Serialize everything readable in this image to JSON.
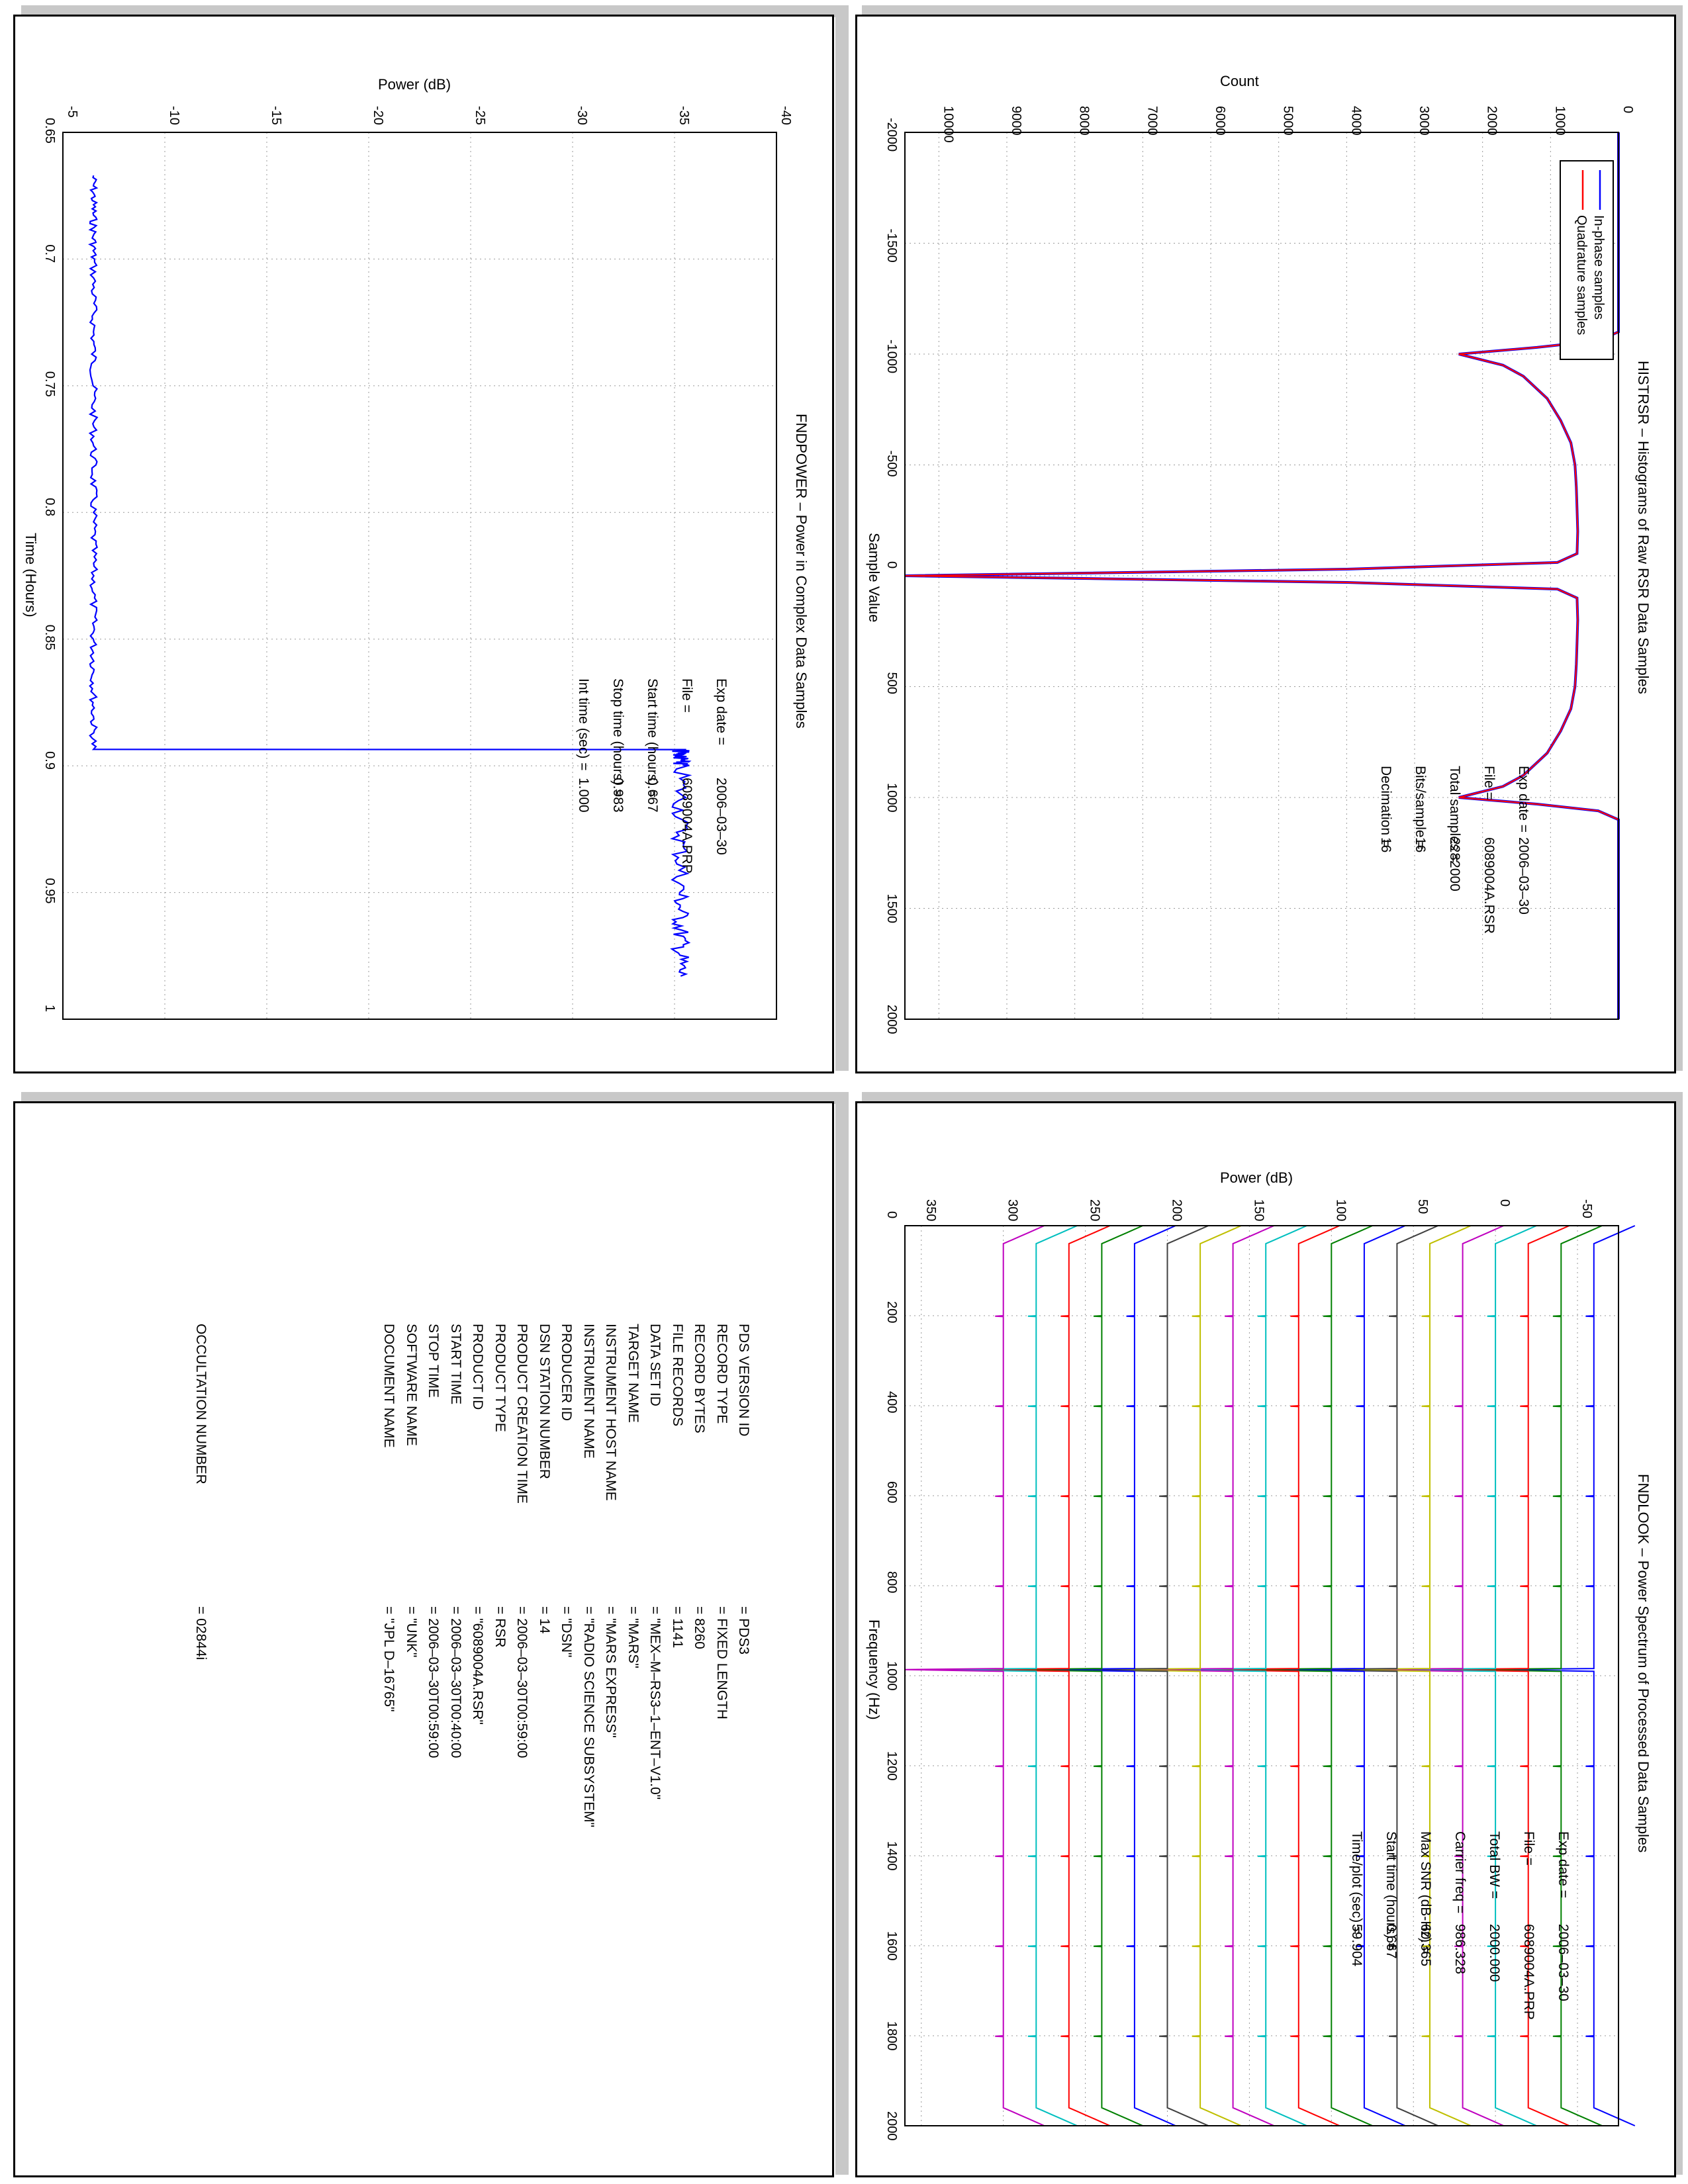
{
  "histrsr": {
    "title": "HISTRSR – Histograms of Raw RSR Data Samples",
    "xlabel": "Sample Value",
    "ylabel": "Count",
    "legend": [
      "In-phase samples",
      "Quadrature samples"
    ],
    "info": [
      {
        "k": "Exp date =",
        "v": "2006–03–30"
      },
      {
        "k": "File =",
        "v": "6089004A.RSR"
      },
      {
        "k": "Total samples =",
        "v": "2282000"
      },
      {
        "k": "Bits/sample =",
        "v": "16"
      },
      {
        "k": "Decimation =",
        "v": "16"
      }
    ]
  },
  "fndpower": {
    "title": "FNDPOWER – Power in Complex Data Samples",
    "xlabel": "Time (Hours)",
    "ylabel": "Power (dB)",
    "info": [
      {
        "k": "Exp date =",
        "v": "2006–03–30"
      },
      {
        "k": "File =",
        "v": "6089004A.PRP"
      },
      {
        "k": "Start time (hours) =",
        "v": "0.667"
      },
      {
        "k": "Stop time (hours) =",
        "v": "0.983"
      },
      {
        "k": "Int time (sec) =",
        "v": "1.000"
      }
    ]
  },
  "fndlook": {
    "title": "FNDLOOK – Power Spectrum of Processed Data Samples",
    "xlabel": "Frequency (Hz)",
    "ylabel": "Power (dB)",
    "info": [
      {
        "k": "Exp date =",
        "v": "2006–03–30"
      },
      {
        "k": "File =",
        "v": "6089004A.PRP"
      },
      {
        "k": "Total BW =",
        "v": "2000.000"
      },
      {
        "k": "Carrier freq =",
        "v": "986.328"
      },
      {
        "k": "Max SNR (dB-Hz) =",
        "v": "60.365"
      },
      {
        "k": "Start time (hours) =",
        "v": "0.667"
      },
      {
        "k": "Time/plot (sec) =",
        "v": "59.904"
      }
    ]
  },
  "labels": {
    "rows": [
      {
        "k": "PDS VERSION ID",
        "v": "= PDS3"
      },
      {
        "k": "RECORD TYPE",
        "v": "= FIXED LENGTH"
      },
      {
        "k": "RECORD BYTES",
        "v": "= 8260"
      },
      {
        "k": "FILE RECORDS",
        "v": "= 1141"
      },
      {
        "k": "DATA SET ID",
        "v": "= \"MEX–M–RS3–1–ENT–V1.0\""
      },
      {
        "k": "TARGET NAME",
        "v": "= \"MARS\""
      },
      {
        "k": "INSTRUMENT HOST NAME",
        "v": "= \"MARS EXPRESS\""
      },
      {
        "k": "INSTRUMENT NAME",
        "v": "= \"RADIO SCIENCE SUBSYSTEM\""
      },
      {
        "k": "PRODUCER ID",
        "v": "= \"DSN\""
      },
      {
        "k": "DSN STATION NUMBER",
        "v": "= 14"
      },
      {
        "k": "PRODUCT CREATION TIME",
        "v": "= 2006–03–30T00:59:00"
      },
      {
        "k": "PRODUCT TYPE",
        "v": "= RSR"
      },
      {
        "k": "PRODUCT ID",
        "v": "= \"6089004A.RSR\""
      },
      {
        "k": "START TIME",
        "v": "= 2006–03–30T00:40:00"
      },
      {
        "k": "STOP TIME",
        "v": "= 2006–03–30T00:59:00"
      },
      {
        "k": "SOFTWARE NAME",
        "v": "= \"UNK\""
      },
      {
        "k": "DOCUMENT NAME",
        "v": "= \"JPL D–16765\""
      }
    ],
    "occultation": {
      "k": "OCCULTATION NUMBER",
      "v": "= 02844i"
    }
  },
  "chart_data": [
    {
      "type": "line",
      "title": "HISTRSR – Histograms of Raw RSR Data Samples",
      "xlabel": "Sample Value",
      "ylabel": "Count",
      "xlim": [
        -2000,
        2000
      ],
      "ylim": [
        0,
        10500
      ],
      "xticks": [
        -2000,
        -1500,
        -1000,
        -500,
        0,
        500,
        1000,
        1500,
        2000
      ],
      "yticks": [
        0,
        1000,
        2000,
        3000,
        4000,
        5000,
        6000,
        7000,
        8000,
        9000,
        10000
      ],
      "grid": true,
      "legend_position": "top-left",
      "series": [
        {
          "name": "In-phase samples",
          "color": "#0000ff",
          "x": [
            -2000,
            -1100,
            -1060,
            -1030,
            -1000,
            -950,
            -900,
            -800,
            -700,
            -600,
            -500,
            -400,
            -300,
            -200,
            -100,
            -60,
            -30,
            0,
            30,
            60,
            100,
            200,
            300,
            400,
            500,
            600,
            700,
            800,
            900,
            950,
            1000,
            1030,
            1060,
            1100,
            2000
          ],
          "y": [
            0,
            0,
            300,
            1200,
            2350,
            1700,
            1400,
            1050,
            850,
            700,
            640,
            620,
            610,
            600,
            610,
            900,
            4000,
            10500,
            4000,
            900,
            610,
            600,
            610,
            620,
            640,
            700,
            850,
            1050,
            1400,
            1700,
            2350,
            1200,
            300,
            0,
            0
          ]
        },
        {
          "name": "Quadrature samples",
          "color": "#ff0000",
          "x": [
            -2000,
            -1100,
            -1060,
            -1030,
            -1000,
            -950,
            -900,
            -800,
            -700,
            -600,
            -500,
            -400,
            -300,
            -200,
            -100,
            -60,
            -30,
            0,
            30,
            60,
            100,
            200,
            300,
            400,
            500,
            600,
            700,
            800,
            900,
            950,
            1000,
            1030,
            1060,
            1100,
            2000
          ],
          "y": [
            0,
            0,
            300,
            1200,
            2350,
            1700,
            1400,
            1050,
            850,
            700,
            640,
            620,
            610,
            600,
            610,
            900,
            4000,
            10500,
            4000,
            900,
            610,
            600,
            610,
            620,
            640,
            700,
            850,
            1050,
            1400,
            1700,
            2350,
            1200,
            300,
            0,
            0
          ]
        }
      ]
    },
    {
      "type": "line",
      "title": "FNDPOWER – Power in Complex Data Samples",
      "xlabel": "Time (Hours)",
      "ylabel": "Power (dB)",
      "xlim": [
        0.65,
        1.0
      ],
      "ylim": [
        -40,
        -5
      ],
      "xticks": [
        0.65,
        0.7,
        0.75,
        0.8,
        0.85,
        0.9,
        0.95,
        1
      ],
      "yticks": [
        -40,
        -35,
        -30,
        -25,
        -20,
        -15,
        -10,
        -5
      ],
      "grid": true,
      "series": [
        {
          "name": "",
          "color": "#0000ff",
          "x": [
            0.667,
            0.7,
            0.75,
            0.8,
            0.85,
            0.8935,
            0.8936,
            0.9,
            0.95,
            0.983
          ],
          "y": [
            -6.5,
            -6.5,
            -6.5,
            -6.5,
            -6.5,
            -6.5,
            -35.3,
            -35.3,
            -35.3,
            -35.3
          ]
        }
      ]
    },
    {
      "type": "line",
      "title": "FNDLOOK – Power Spectrum of Processed Data Samples",
      "xlabel": "Frequency (Hz)",
      "ylabel": "Power (dB)",
      "xlim": [
        0,
        2000
      ],
      "ylim": [
        -75,
        360
      ],
      "xticks": [
        0,
        200,
        400,
        600,
        800,
        1000,
        1200,
        1400,
        1600,
        1800,
        2000
      ],
      "yticks": [
        -50,
        0,
        50,
        100,
        150,
        200,
        250,
        300,
        350
      ],
      "grid": true,
      "carrier_freq": 986.328,
      "trace_plateau_levels": [
        -60,
        -40,
        -20,
        0,
        20,
        40,
        60,
        80,
        100,
        120,
        140,
        160,
        180,
        200,
        220,
        240,
        260,
        280,
        300
      ],
      "trace_colors": [
        "#0000ff",
        "#008000",
        "#ff0000",
        "#00bfbf",
        "#bf00bf",
        "#bfbf00",
        "#404040",
        "#0000ff",
        "#008000",
        "#ff0000",
        "#00bfbf",
        "#bf00bf",
        "#bfbf00",
        "#404040",
        "#0000ff",
        "#008000",
        "#ff0000",
        "#00bfbf",
        "#bf00bf"
      ]
    }
  ]
}
